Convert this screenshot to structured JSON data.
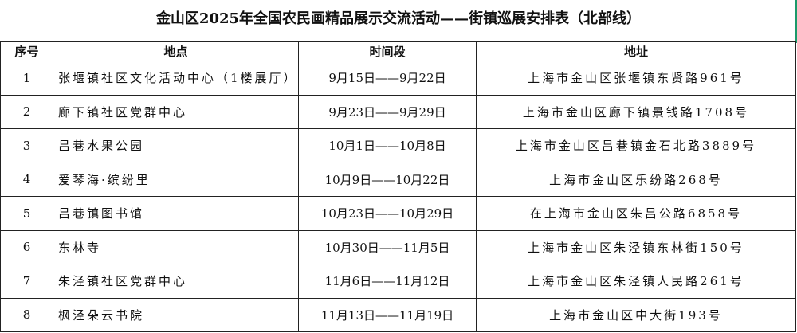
{
  "title": "金山区2025年全国农民画精品展示交流活动——街镇巡展安排表（北部线）",
  "accent_color": "#1a9a6a",
  "headers": [
    "序号",
    "地点",
    "时间段",
    "地址"
  ],
  "rows": [
    {
      "no": "1",
      "place": "张堰镇社区文化活动中心（1楼展厅）",
      "period": "9月15日——9月22日",
      "address": "上海市金山区张堰镇东贤路961号"
    },
    {
      "no": "2",
      "place": "廊下镇社区党群中心",
      "period": "9月23日——9月29日",
      "address": "上海市金山区廊下镇景钱路1708号"
    },
    {
      "no": "3",
      "place": "吕巷水果公园",
      "period": "10月1日——10月8日",
      "address": "上海市金山区吕巷镇金石北路3889号"
    },
    {
      "no": "4",
      "place": "爱琴海·缤纷里",
      "period": "10月9日——10月22日",
      "address": "上海市金山区乐纷路268号"
    },
    {
      "no": "5",
      "place": "吕巷镇图书馆",
      "period": "10月23日——10月29日",
      "address": "在上海市金山区朱吕公路6858号"
    },
    {
      "no": "6",
      "place": "东林寺",
      "period": "10月30日——11月5日",
      "address": "上海市金山区朱泾镇东林街150号"
    },
    {
      "no": "7",
      "place": "朱泾镇社区党群中心",
      "period": "11月6日——11月12日",
      "address": "上海市金山区朱泾镇人民路261号"
    },
    {
      "no": "8",
      "place": "枫泾朵云书院",
      "period": "11月13日——11月19日",
      "address": "上海市金山区中大街193号"
    }
  ]
}
